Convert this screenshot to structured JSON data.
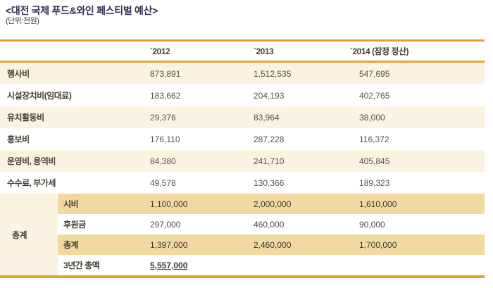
{
  "chart_data": {
    "type": "table",
    "title": "<대전 국제 푸드&와인 페스티벌 예산>",
    "unit": "(단위:천원)",
    "columns": [
      "`2012",
      "`2013",
      "`2014 (잠정 정산)"
    ],
    "rows": [
      {
        "label": "행사비",
        "values": [
          "873,891",
          "1,512,535",
          "547,695"
        ]
      },
      {
        "label": "시설장치비(임대료)",
        "values": [
          "183,662",
          "204,193",
          "402,765"
        ]
      },
      {
        "label": "유치활동비",
        "values": [
          "29,376",
          "83,964",
          "38,000"
        ]
      },
      {
        "label": "홍보비",
        "values": [
          "176,110",
          "287,228",
          "116,372"
        ]
      },
      {
        "label": "운영비, 용역비",
        "values": [
          "84,380",
          "241,710",
          "405,845"
        ]
      },
      {
        "label": "수수료, 부가세",
        "values": [
          "49,578",
          "130,366",
          "189,323"
        ]
      }
    ],
    "total_group": {
      "label": "총계",
      "rows": [
        {
          "label": "시비",
          "values": [
            "1,100,000",
            "2,000,000",
            "1,610,000"
          ],
          "highlighted": true
        },
        {
          "label": "후원금",
          "values": [
            "297,000",
            "460,000",
            "90,000"
          ],
          "highlighted": false
        },
        {
          "label": "총계",
          "values": [
            "1,397,000",
            "2,460,000",
            "1,700,000"
          ],
          "highlighted": true
        },
        {
          "label": "3년간 총액",
          "values": [
            "5,557,000",
            "",
            ""
          ],
          "highlighted": false
        }
      ]
    },
    "layout": {
      "grid": "off",
      "striped_rows": true
    },
    "colors": {
      "accent_border": "#dfa32b",
      "stripe_cream": "#faf3e2",
      "highlight_tan": "#f2d9a2",
      "title_text": "#3a2f52",
      "label_text": "#473f35",
      "number_text": "#57534c"
    }
  }
}
